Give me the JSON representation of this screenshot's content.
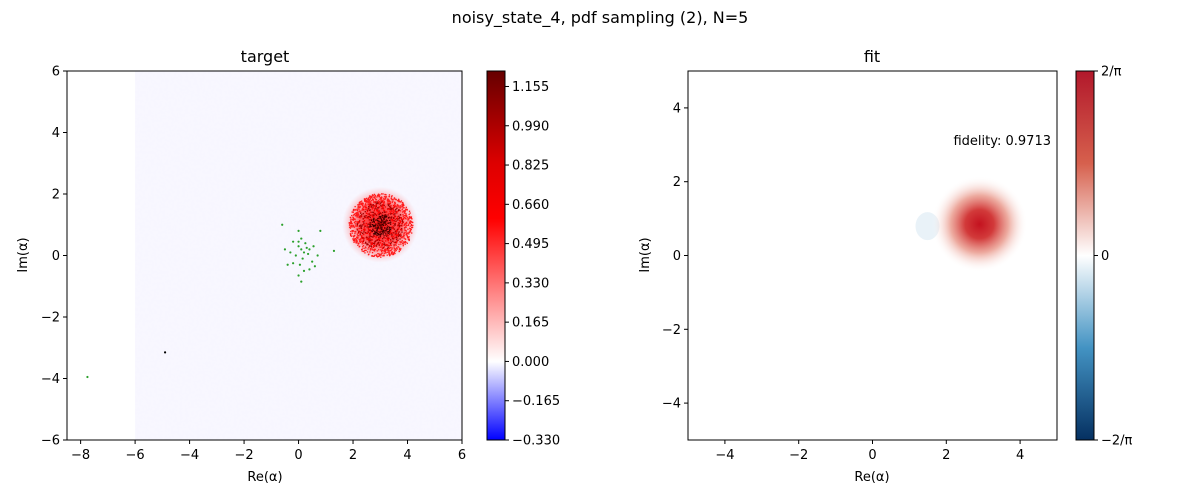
{
  "figure": {
    "suptitle": "noisy_state_4, pdf sampling (2), N=5"
  },
  "chart_data": [
    {
      "type": "heatmap",
      "title": "target",
      "xlabel": "Re(α)",
      "ylabel": "Im(α)",
      "xlim": [
        -8.5,
        6
      ],
      "ylim": [
        -6,
        6
      ],
      "heatmap_domain": {
        "x": [
          -6,
          6
        ],
        "y": [
          -6,
          6
        ]
      },
      "x_ticks": [
        "−8",
        "−6",
        "−4",
        "−2",
        "0",
        "2",
        "4",
        "6"
      ],
      "x_tick_values": [
        -8,
        -6,
        -4,
        -2,
        0,
        2,
        4,
        6
      ],
      "y_ticks": [
        "−6",
        "−4",
        "−2",
        "0",
        "2",
        "4",
        "6"
      ],
      "y_tick_values": [
        -6,
        -4,
        -2,
        0,
        2,
        4,
        6
      ],
      "peak": {
        "x": 3.0,
        "y": 1.0,
        "max": 1.2
      },
      "colorbar": {
        "min": -0.33,
        "max": 1.22,
        "tick_values": [
          1.155,
          0.99,
          0.825,
          0.66,
          0.495,
          0.33,
          0.165,
          0.0,
          -0.165,
          -0.33
        ],
        "tick_labels": [
          "1.155",
          "0.990",
          "0.825",
          "0.660",
          "0.495",
          "0.330",
          "0.165",
          "0.000",
          "−0.165",
          "−0.330"
        ],
        "colors": [
          "#0000ff",
          "#ffffff",
          "#ff0000",
          "#660000"
        ]
      },
      "sample_points": {
        "green": [
          [
            0.0,
            0.3
          ],
          [
            0.1,
            0.2
          ],
          [
            0.2,
            0.1
          ],
          [
            0.15,
            -0.1
          ],
          [
            -0.1,
            0.0
          ],
          [
            0.3,
            0.25
          ],
          [
            0.4,
            0.2
          ],
          [
            0.05,
            -0.3
          ],
          [
            -0.3,
            0.1
          ],
          [
            0.2,
            -0.5
          ],
          [
            0.1,
            0.55
          ],
          [
            0.5,
            -0.2
          ],
          [
            -0.2,
            -0.25
          ],
          [
            0.35,
            0.05
          ],
          [
            0.0,
            0.45
          ],
          [
            0.7,
            0.0
          ],
          [
            0.55,
            0.3
          ],
          [
            -0.5,
            0.2
          ],
          [
            0.25,
            0.4
          ],
          [
            -0.4,
            -0.3
          ],
          [
            0.1,
            -0.85
          ],
          [
            0.0,
            -0.65
          ],
          [
            -0.6,
            1.0
          ],
          [
            0.0,
            0.8
          ],
          [
            0.8,
            0.8
          ],
          [
            1.3,
            0.15
          ],
          [
            0.6,
            -0.35
          ],
          [
            -0.2,
            0.45
          ],
          [
            0.4,
            -0.45
          ],
          [
            -7.75,
            -3.95
          ]
        ],
        "black": [
          [
            -4.9,
            -3.15
          ]
        ]
      }
    },
    {
      "type": "heatmap",
      "title": "fit",
      "xlabel": "Re(α)",
      "ylabel": "Im(α)",
      "xlim": [
        -5,
        5
      ],
      "ylim": [
        -5,
        5
      ],
      "x_ticks": [
        "−4",
        "−2",
        "0",
        "2",
        "4"
      ],
      "x_tick_values": [
        -4,
        -2,
        0,
        2,
        4
      ],
      "y_ticks": [
        "−4",
        "−2",
        "0",
        "2",
        "4"
      ],
      "y_tick_values": [
        -4,
        -2,
        0,
        2,
        4
      ],
      "peak": {
        "x": 2.9,
        "y": 0.85
      },
      "annotation": "fidelity: 0.9713",
      "colorbar": {
        "tick_labels": [
          "2/π",
          "0",
          "−2/π"
        ],
        "colors": [
          "#053061",
          "#4393c3",
          "#ffffff",
          "#d6604d",
          "#b2182b"
        ]
      }
    }
  ]
}
